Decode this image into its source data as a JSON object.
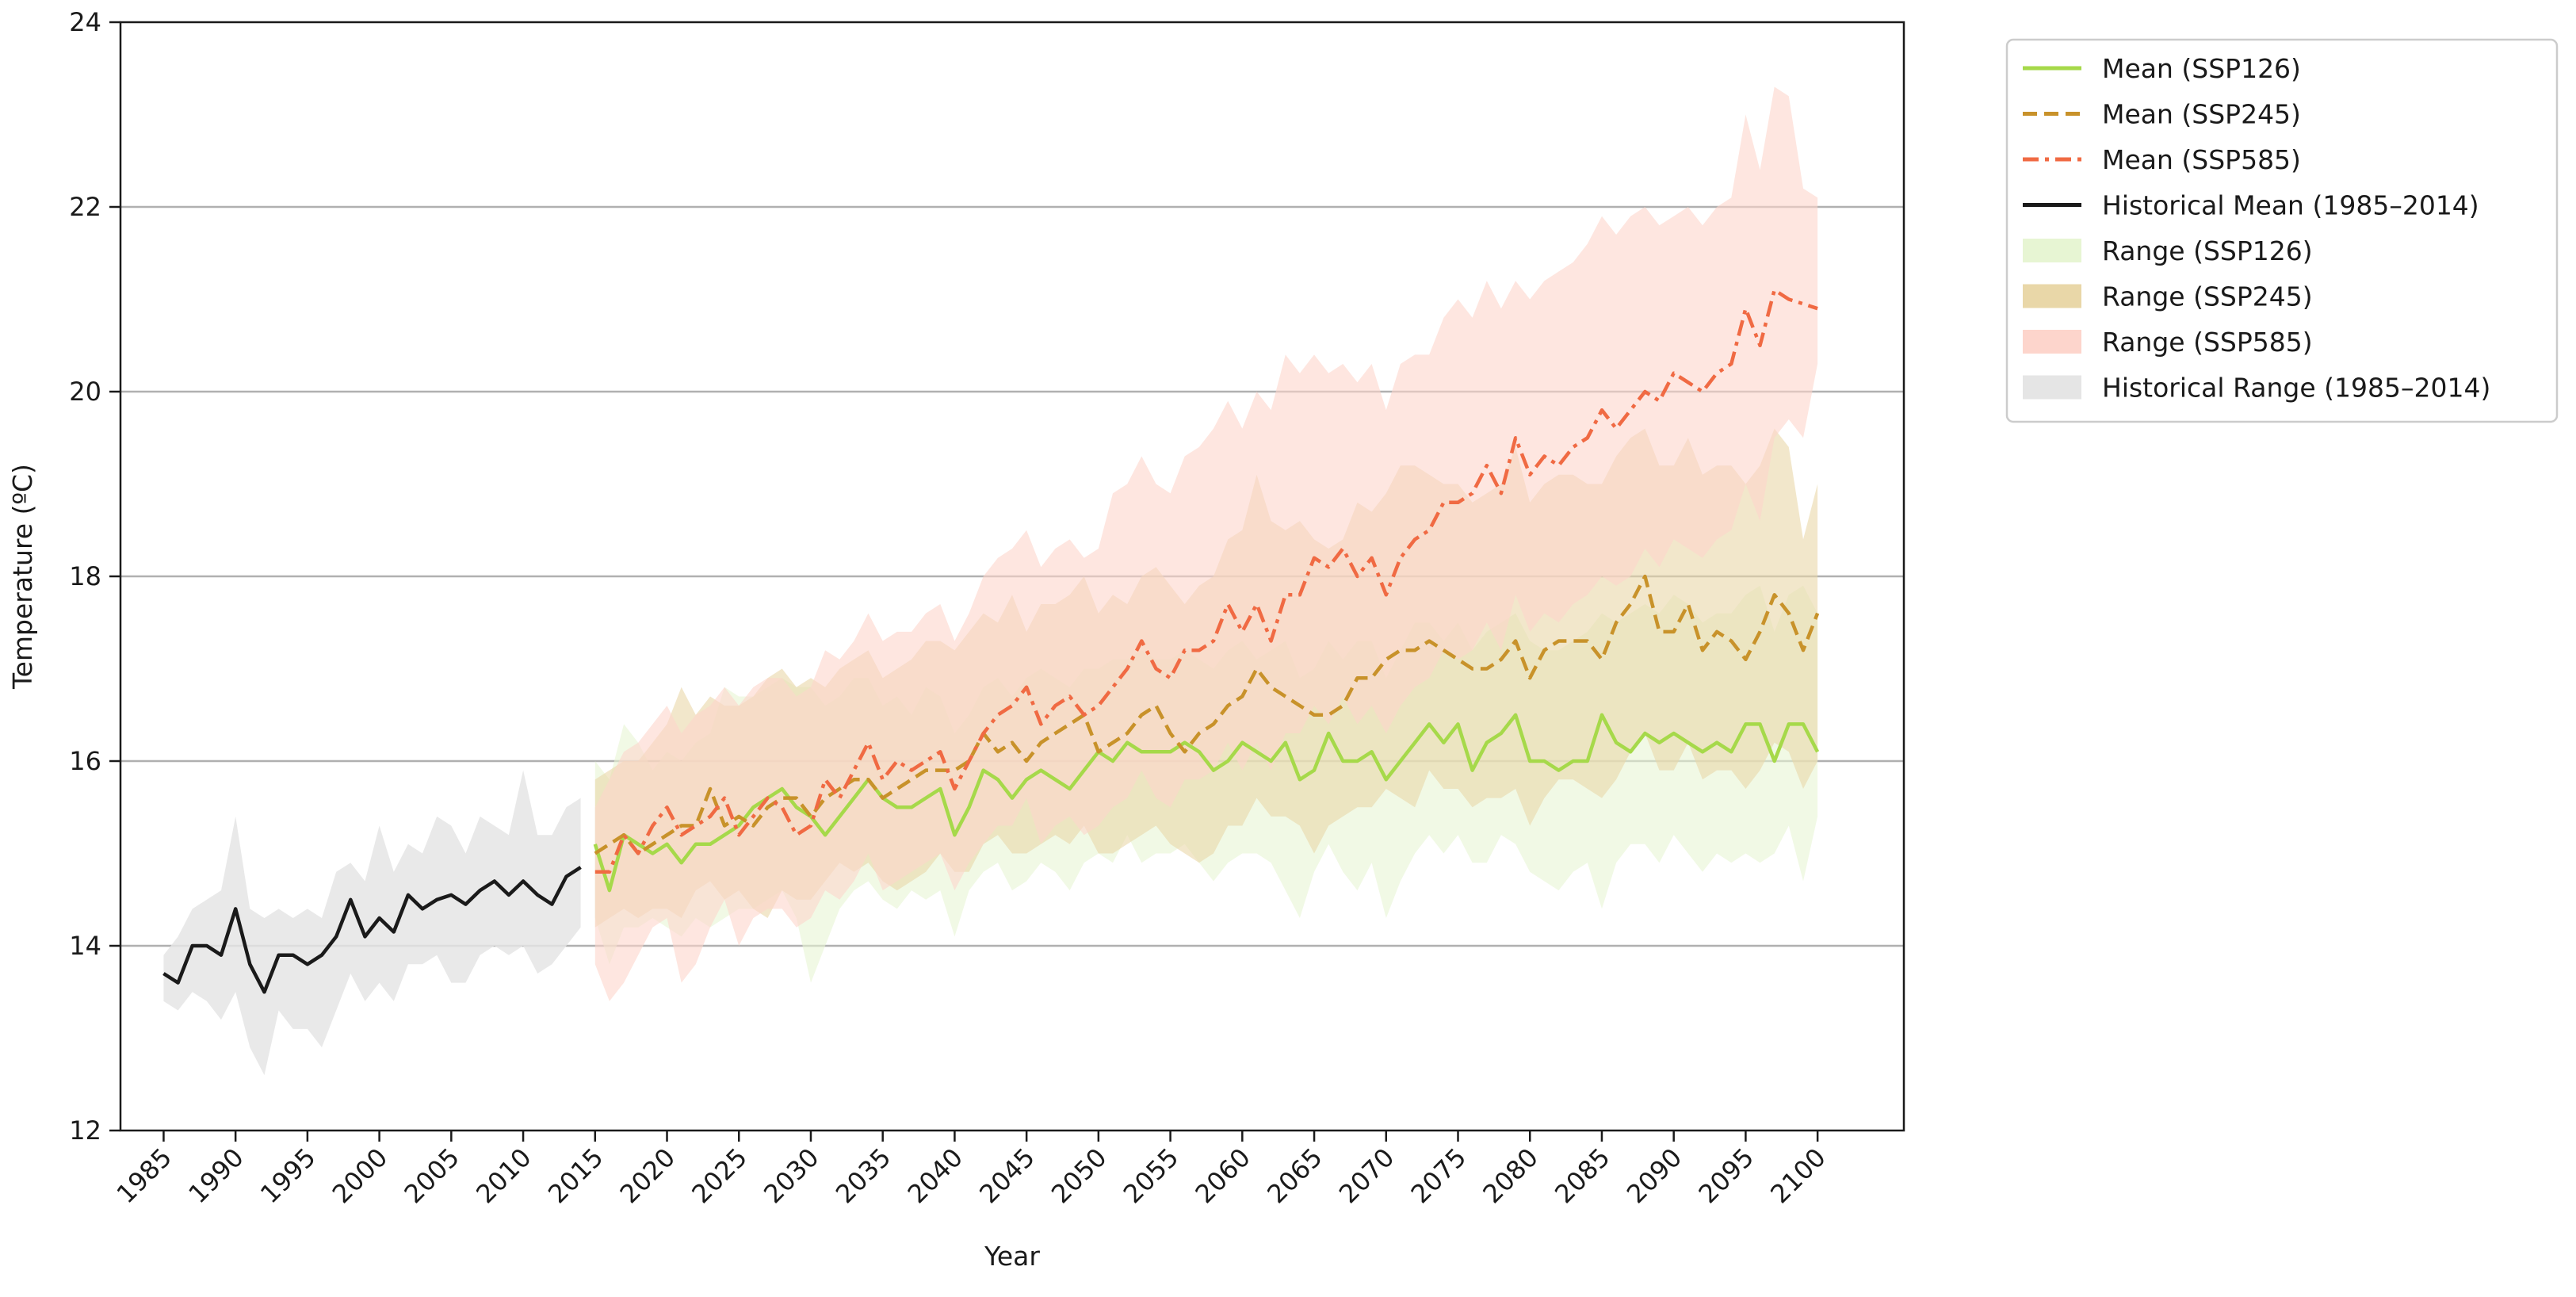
{
  "chart_data": {
    "type": "line",
    "title": "",
    "xlabel": "Year",
    "ylabel": "Temperature (ºC)",
    "xlim": [
      1982,
      2106
    ],
    "ylim": [
      12,
      24
    ],
    "xticks": [
      1985,
      1990,
      1995,
      2000,
      2005,
      2010,
      2015,
      2020,
      2025,
      2030,
      2035,
      2040,
      2045,
      2050,
      2055,
      2060,
      2065,
      2070,
      2075,
      2080,
      2085,
      2090,
      2095,
      2100
    ],
    "yticks": [
      12,
      14,
      16,
      18,
      20,
      22,
      24
    ],
    "grid": "horizontal",
    "legend_position": "outside right",
    "historical": {
      "mean": {
        "name": "Historical Mean (1985–2014)",
        "color": "#1a1a1a",
        "x": [
          1985,
          1986,
          1987,
          1988,
          1989,
          1990,
          1991,
          1992,
          1993,
          1994,
          1995,
          1996,
          1997,
          1998,
          1999,
          2000,
          2001,
          2002,
          2003,
          2004,
          2005,
          2006,
          2007,
          2008,
          2009,
          2010,
          2011,
          2012,
          2013,
          2014
        ],
        "y": [
          13.7,
          13.6,
          14.0,
          14.0,
          13.9,
          14.4,
          13.8,
          13.5,
          13.9,
          13.9,
          13.8,
          13.9,
          14.1,
          14.5,
          14.1,
          14.3,
          14.15,
          14.55,
          14.4,
          14.5,
          14.55,
          14.45,
          14.6,
          14.7,
          14.55,
          14.7,
          14.55,
          14.45,
          14.75,
          14.85
        ]
      },
      "range": {
        "name": "Historical Range (1985–2014)",
        "color": "#e5e5e5",
        "lower": [
          13.4,
          13.3,
          13.5,
          13.4,
          13.2,
          13.5,
          12.9,
          12.6,
          13.3,
          13.1,
          13.1,
          12.9,
          13.3,
          13.7,
          13.4,
          13.6,
          13.4,
          13.8,
          13.8,
          13.9,
          13.6,
          13.6,
          13.9,
          14.0,
          13.9,
          14.0,
          13.7,
          13.8,
          14.0,
          14.2
        ],
        "upper": [
          13.9,
          14.1,
          14.4,
          14.5,
          14.6,
          15.4,
          14.4,
          14.3,
          14.4,
          14.3,
          14.4,
          14.3,
          14.8,
          14.9,
          14.7,
          15.3,
          14.8,
          15.1,
          15.0,
          15.4,
          15.3,
          15.0,
          15.4,
          15.3,
          15.2,
          15.9,
          15.2,
          15.2,
          15.5,
          15.6
        ]
      }
    },
    "projection_x": [
      2015,
      2016,
      2017,
      2018,
      2019,
      2020,
      2021,
      2022,
      2023,
      2024,
      2025,
      2026,
      2027,
      2028,
      2029,
      2030,
      2031,
      2032,
      2033,
      2034,
      2035,
      2036,
      2037,
      2038,
      2039,
      2040,
      2041,
      2042,
      2043,
      2044,
      2045,
      2046,
      2047,
      2048,
      2049,
      2050,
      2051,
      2052,
      2053,
      2054,
      2055,
      2056,
      2057,
      2058,
      2059,
      2060,
      2061,
      2062,
      2063,
      2064,
      2065,
      2066,
      2067,
      2068,
      2069,
      2070,
      2071,
      2072,
      2073,
      2074,
      2075,
      2076,
      2077,
      2078,
      2079,
      2080,
      2081,
      2082,
      2083,
      2084,
      2085,
      2086,
      2087,
      2088,
      2089,
      2090,
      2091,
      2092,
      2093,
      2094,
      2095,
      2096,
      2097,
      2098,
      2099,
      2100
    ],
    "series": [
      {
        "name": "Mean (SSP126)",
        "range_name": "Range (SSP126)",
        "color": "#a6d94a",
        "fill": "#e7f5d3",
        "dash": "solid",
        "values": [
          15.1,
          14.6,
          15.2,
          15.1,
          15.0,
          15.1,
          14.9,
          15.1,
          15.1,
          15.2,
          15.3,
          15.5,
          15.6,
          15.7,
          15.5,
          15.4,
          15.2,
          15.4,
          15.6,
          15.8,
          15.6,
          15.5,
          15.5,
          15.6,
          15.7,
          15.2,
          15.5,
          15.9,
          15.8,
          15.6,
          15.8,
          15.9,
          15.8,
          15.7,
          15.9,
          16.1,
          16.0,
          16.2,
          16.1,
          16.1,
          16.1,
          16.2,
          16.1,
          15.9,
          16.0,
          16.2,
          16.1,
          16.0,
          16.2,
          15.8,
          15.9,
          16.3,
          16.0,
          16.0,
          16.1,
          15.8,
          16.0,
          16.2,
          16.4,
          16.2,
          16.4,
          15.9,
          16.2,
          16.3,
          16.5,
          16.0,
          16.0,
          15.9,
          16.0,
          16.0,
          16.5,
          16.2,
          16.1,
          16.3,
          16.2,
          16.3,
          16.2,
          16.1,
          16.2,
          16.1,
          16.4,
          16.4,
          16.0,
          16.4,
          16.4,
          16.1
        ],
        "lower": [
          14.3,
          13.8,
          14.2,
          14.2,
          14.3,
          14.2,
          14.1,
          14.3,
          14.2,
          14.3,
          14.4,
          14.4,
          14.5,
          14.6,
          14.3,
          13.6,
          14.0,
          14.4,
          14.6,
          14.7,
          14.5,
          14.4,
          14.6,
          14.5,
          14.6,
          14.1,
          14.6,
          14.8,
          14.9,
          14.6,
          14.7,
          14.9,
          14.8,
          14.6,
          14.9,
          15.0,
          14.9,
          15.2,
          14.9,
          15.0,
          15.0,
          15.1,
          14.9,
          14.7,
          14.9,
          15.0,
          15.0,
          14.9,
          14.6,
          14.3,
          14.8,
          15.1,
          14.8,
          14.6,
          14.9,
          14.3,
          14.7,
          15.0,
          15.2,
          15.0,
          15.2,
          14.9,
          14.9,
          15.2,
          15.1,
          14.8,
          14.7,
          14.6,
          14.8,
          14.9,
          14.4,
          14.9,
          15.1,
          15.1,
          14.9,
          15.2,
          15.0,
          14.8,
          15.0,
          14.9,
          15.0,
          14.9,
          15.0,
          15.3,
          14.7,
          15.4
        ],
        "upper": [
          16.0,
          15.8,
          16.4,
          16.2,
          15.9,
          16.1,
          16.0,
          16.2,
          16.3,
          16.8,
          16.7,
          16.7,
          16.8,
          16.9,
          16.8,
          16.8,
          16.6,
          16.7,
          16.9,
          16.9,
          16.6,
          16.7,
          16.5,
          16.8,
          16.7,
          16.3,
          16.5,
          16.8,
          16.9,
          16.7,
          16.9,
          17.0,
          16.9,
          16.8,
          17.0,
          17.0,
          17.1,
          17.1,
          17.2,
          17.1,
          17.1,
          17.2,
          17.1,
          17.0,
          17.2,
          17.3,
          17.1,
          17.2,
          17.3,
          16.9,
          17.0,
          17.3,
          17.1,
          17.3,
          17.3,
          16.9,
          17.2,
          17.5,
          17.5,
          17.3,
          17.5,
          17.2,
          17.4,
          17.5,
          17.6,
          17.3,
          17.2,
          17.2,
          17.3,
          17.4,
          17.6,
          17.5,
          17.6,
          17.7,
          17.6,
          17.8,
          17.7,
          17.5,
          17.6,
          17.6,
          17.8,
          17.9,
          17.4,
          17.8,
          17.9,
          17.6
        ]
      },
      {
        "name": "Mean (SSP245)",
        "range_name": "Range (SSP245)",
        "color": "#c8922a",
        "fill": "#e9d7a8",
        "dash": "dashed",
        "values": [
          15.0,
          15.1,
          15.2,
          15.0,
          15.1,
          15.2,
          15.3,
          15.3,
          15.7,
          15.3,
          15.4,
          15.3,
          15.5,
          15.6,
          15.6,
          15.4,
          15.6,
          15.7,
          15.8,
          15.8,
          15.6,
          15.7,
          15.8,
          15.9,
          15.9,
          15.9,
          16.0,
          16.3,
          16.1,
          16.2,
          16.0,
          16.2,
          16.3,
          16.4,
          16.5,
          16.1,
          16.2,
          16.3,
          16.5,
          16.6,
          16.3,
          16.1,
          16.3,
          16.4,
          16.6,
          16.7,
          17.0,
          16.8,
          16.7,
          16.6,
          16.5,
          16.5,
          16.6,
          16.9,
          16.9,
          17.1,
          17.2,
          17.2,
          17.3,
          17.2,
          17.1,
          17.0,
          17.0,
          17.1,
          17.3,
          16.9,
          17.2,
          17.3,
          17.3,
          17.3,
          17.1,
          17.5,
          17.7,
          18.0,
          17.4,
          17.4,
          17.7,
          17.2,
          17.4,
          17.3,
          17.1,
          17.4,
          17.8,
          17.6,
          17.2,
          17.6
        ],
        "lower": [
          14.2,
          14.3,
          14.4,
          14.3,
          14.4,
          14.4,
          14.3,
          14.6,
          14.7,
          14.5,
          14.6,
          14.4,
          14.3,
          14.6,
          14.5,
          14.5,
          14.7,
          14.9,
          14.8,
          14.9,
          14.7,
          14.6,
          14.7,
          14.8,
          15.0,
          14.8,
          14.8,
          15.1,
          15.2,
          15.0,
          15.0,
          15.1,
          15.2,
          15.1,
          15.3,
          15.0,
          15.0,
          15.1,
          15.2,
          15.3,
          15.1,
          15.0,
          14.9,
          15.0,
          15.3,
          15.3,
          15.6,
          15.4,
          15.4,
          15.3,
          15.0,
          15.3,
          15.4,
          15.5,
          15.5,
          15.7,
          15.6,
          15.5,
          15.9,
          15.7,
          15.7,
          15.5,
          15.6,
          15.6,
          15.7,
          15.3,
          15.6,
          15.8,
          15.8,
          15.7,
          15.6,
          15.8,
          16.1,
          16.3,
          15.9,
          15.9,
          16.2,
          15.8,
          15.9,
          15.9,
          15.7,
          15.9,
          16.2,
          16.1,
          15.7,
          16.0
        ],
        "upper": [
          15.8,
          15.9,
          16.0,
          16.0,
          16.2,
          16.4,
          16.8,
          16.5,
          16.7,
          16.6,
          16.6,
          16.7,
          16.9,
          17.0,
          16.8,
          16.9,
          16.8,
          17.0,
          17.1,
          17.2,
          16.9,
          17.0,
          17.1,
          17.3,
          17.3,
          17.2,
          17.4,
          17.6,
          17.5,
          17.8,
          17.4,
          17.7,
          17.7,
          17.8,
          18.0,
          17.6,
          17.8,
          17.7,
          18.0,
          18.1,
          17.9,
          17.7,
          17.9,
          18.0,
          18.4,
          18.5,
          19.1,
          18.6,
          18.5,
          18.6,
          18.4,
          18.3,
          18.4,
          18.8,
          18.7,
          18.9,
          19.2,
          19.2,
          19.1,
          19.0,
          19.0,
          18.8,
          18.9,
          19.0,
          19.4,
          18.8,
          19.0,
          19.1,
          19.1,
          19.0,
          19.0,
          19.3,
          19.5,
          19.6,
          19.2,
          19.2,
          19.5,
          19.1,
          19.2,
          19.2,
          19.0,
          19.2,
          19.6,
          19.4,
          18.4,
          19.0
        ]
      },
      {
        "name": "Mean (SSP585)",
        "range_name": "Range (SSP585)",
        "color": "#f06a43",
        "fill": "#fdd5cc",
        "dash": "dashdot",
        "values": [
          14.8,
          14.8,
          15.2,
          15.0,
          15.3,
          15.5,
          15.2,
          15.3,
          15.4,
          15.6,
          15.2,
          15.4,
          15.6,
          15.5,
          15.2,
          15.3,
          15.8,
          15.6,
          15.9,
          16.2,
          15.8,
          16.0,
          15.9,
          16.0,
          16.1,
          15.7,
          16.0,
          16.3,
          16.5,
          16.6,
          16.8,
          16.4,
          16.6,
          16.7,
          16.5,
          16.6,
          16.8,
          17.0,
          17.3,
          17.0,
          16.9,
          17.2,
          17.2,
          17.3,
          17.7,
          17.4,
          17.7,
          17.3,
          17.8,
          17.8,
          18.2,
          18.1,
          18.3,
          18.0,
          18.2,
          17.8,
          18.2,
          18.4,
          18.5,
          18.8,
          18.8,
          18.9,
          19.2,
          18.9,
          19.5,
          19.1,
          19.3,
          19.2,
          19.4,
          19.5,
          19.8,
          19.6,
          19.8,
          20.0,
          19.9,
          20.2,
          20.1,
          20.0,
          20.2,
          20.3,
          20.9,
          20.5,
          21.1,
          21.0,
          20.95,
          20.9
        ],
        "lower": [
          13.8,
          13.4,
          13.6,
          13.9,
          14.2,
          14.3,
          13.6,
          13.8,
          14.2,
          14.5,
          14.0,
          14.3,
          14.4,
          14.4,
          14.2,
          14.3,
          14.6,
          14.5,
          14.7,
          15.0,
          14.6,
          14.7,
          14.8,
          14.9,
          15.0,
          14.6,
          14.9,
          15.1,
          15.3,
          15.3,
          15.6,
          15.1,
          15.3,
          15.4,
          15.2,
          15.3,
          15.5,
          15.6,
          15.9,
          15.6,
          15.5,
          15.8,
          15.8,
          15.9,
          16.2,
          15.9,
          16.2,
          15.9,
          16.3,
          16.3,
          16.6,
          16.4,
          16.7,
          16.4,
          16.6,
          16.3,
          16.6,
          16.8,
          16.9,
          17.2,
          17.1,
          17.2,
          17.5,
          17.2,
          17.8,
          17.4,
          17.6,
          17.5,
          17.7,
          17.8,
          18.0,
          17.9,
          18.0,
          18.3,
          18.1,
          18.4,
          18.3,
          18.2,
          18.4,
          18.5,
          19.0,
          18.6,
          19.5,
          19.7,
          19.5,
          20.3
        ],
        "upper": [
          15.5,
          15.8,
          16.1,
          16.2,
          16.4,
          16.6,
          16.3,
          16.5,
          16.6,
          16.8,
          16.6,
          16.8,
          16.9,
          16.9,
          16.7,
          16.8,
          17.2,
          17.1,
          17.3,
          17.6,
          17.3,
          17.4,
          17.4,
          17.6,
          17.7,
          17.3,
          17.6,
          18.0,
          18.2,
          18.3,
          18.5,
          18.1,
          18.3,
          18.4,
          18.2,
          18.3,
          18.9,
          19.0,
          19.3,
          19.0,
          18.9,
          19.3,
          19.4,
          19.6,
          19.9,
          19.6,
          20.0,
          19.8,
          20.4,
          20.2,
          20.4,
          20.2,
          20.3,
          20.1,
          20.3,
          19.8,
          20.3,
          20.4,
          20.4,
          20.8,
          21.0,
          20.8,
          21.2,
          20.9,
          21.2,
          21.0,
          21.2,
          21.3,
          21.4,
          21.6,
          21.9,
          21.7,
          21.9,
          22.0,
          21.8,
          21.9,
          22.0,
          21.8,
          22.0,
          22.1,
          23.0,
          22.4,
          23.3,
          23.2,
          22.2,
          22.1
        ]
      }
    ],
    "legend_order": [
      {
        "label": "Mean (SSP126)",
        "kind": "line",
        "color": "#a6d94a",
        "dash": "solid"
      },
      {
        "label": "Mean (SSP245)",
        "kind": "line",
        "color": "#c8922a",
        "dash": "dashed"
      },
      {
        "label": "Mean (SSP585)",
        "kind": "line",
        "color": "#f06a43",
        "dash": "dashdot"
      },
      {
        "label": "Historical Mean (1985–2014)",
        "kind": "line",
        "color": "#1a1a1a",
        "dash": "solid"
      },
      {
        "label": "Range (SSP126)",
        "kind": "patch",
        "color": "#e7f5d3"
      },
      {
        "label": "Range (SSP245)",
        "kind": "patch",
        "color": "#e9d7a8"
      },
      {
        "label": "Range (SSP585)",
        "kind": "patch",
        "color": "#fdd5cc"
      },
      {
        "label": "Historical Range (1985–2014)",
        "kind": "patch",
        "color": "#e5e5e5"
      }
    ]
  }
}
